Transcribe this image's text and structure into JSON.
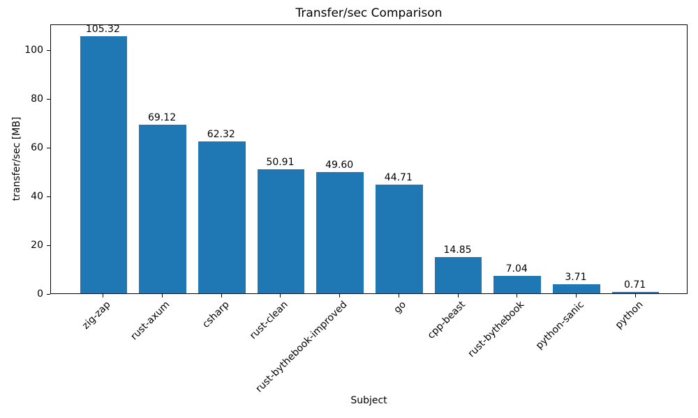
{
  "chart_data": {
    "type": "bar",
    "title": "Transfer/sec Comparison",
    "xlabel": "Subject",
    "ylabel": "transfer/sec [MB]",
    "categories": [
      "zig-zap",
      "rust-axum",
      "csharp",
      "rust-clean",
      "rust-bythebook-improved",
      "go",
      "cpp-beast",
      "rust-bythebook",
      "python-sanic",
      "python"
    ],
    "values": [
      105.32,
      69.12,
      62.32,
      50.91,
      49.6,
      44.71,
      14.85,
      7.04,
      3.71,
      0.71
    ],
    "value_labels": [
      "105.32",
      "69.12",
      "62.32",
      "50.91",
      "49.60",
      "44.71",
      "14.85",
      "7.04",
      "3.71",
      "0.71"
    ],
    "yticks": [
      0,
      20,
      40,
      60,
      80,
      100
    ],
    "ytick_labels": [
      "0",
      "20",
      "40",
      "60",
      "80",
      "100"
    ],
    "ylim": [
      0,
      110.59
    ],
    "bar_color": "#1f77b4",
    "axis_color": "#000000",
    "text_color": "#000000",
    "grid": false,
    "legend": null,
    "xtick_rotation_deg": 45
  }
}
